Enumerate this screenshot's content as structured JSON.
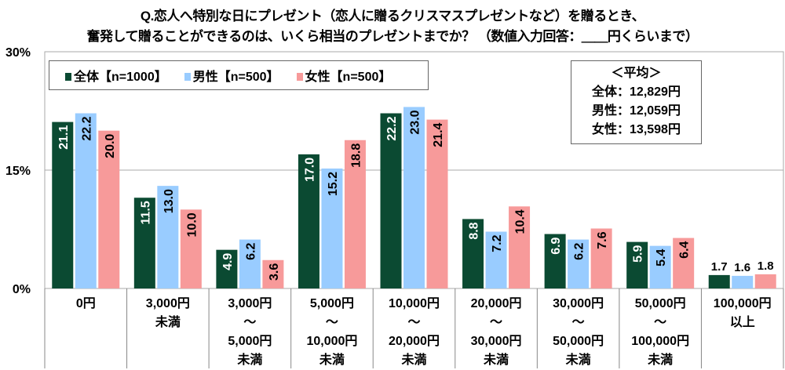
{
  "title_line1": "Q.恋人へ特別な日にプレゼント（恋人に贈るクリスマスプレゼントなど）を贈るとき、",
  "title_line2": "奮発して贈ることができるのは、いくら相当のプレゼントまでか？ （数値入力回答：＿＿円くらいまで）",
  "average_box": {
    "heading": "＜平均＞",
    "rows": [
      "全体：12,829円",
      "男性：12,059円",
      "女性：13,598円"
    ]
  },
  "chart_data": {
    "type": "bar",
    "title": "Q.恋人へ特別な日にプレゼント（恋人に贈るクリスマスプレゼントなど）を贈るとき、奮発して贈ることができるのは、いくら相当のプレゼントまでか？",
    "ylabel": "",
    "xlabel": "",
    "ylim": [
      0,
      30
    ],
    "yticks": [
      "0%",
      "15%",
      "30%"
    ],
    "ytick_values": [
      0,
      15,
      30
    ],
    "legend_position": "top-left",
    "categories": [
      [
        "0円"
      ],
      [
        "3,000円",
        "未満"
      ],
      [
        "3,000円",
        "～",
        "5,000円",
        "未満"
      ],
      [
        "5,000円",
        "～",
        "10,000円",
        "未満"
      ],
      [
        "10,000円",
        "～",
        "20,000円",
        "未満"
      ],
      [
        "20,000円",
        "～",
        "30,000円",
        "未満"
      ],
      [
        "30,000円",
        "～",
        "50,000円",
        "未満"
      ],
      [
        "50,000円",
        "～",
        "100,000円",
        "未満"
      ],
      [
        "100,000円",
        "以上"
      ]
    ],
    "series": [
      {
        "name": "全体【n=1000】",
        "color": "#0b4a32",
        "label_color": "#ffffff",
        "values": [
          21.1,
          11.5,
          4.9,
          17.0,
          22.2,
          8.8,
          6.9,
          5.9,
          1.7
        ]
      },
      {
        "name": "男性【n=500】",
        "color": "#99ccff",
        "label_color": "#000000",
        "values": [
          22.2,
          13.0,
          6.2,
          15.2,
          23.0,
          7.2,
          6.2,
          5.4,
          1.6
        ]
      },
      {
        "name": "女性【n=500】",
        "color": "#f79a9a",
        "label_color": "#000000",
        "values": [
          20.0,
          10.0,
          3.6,
          18.8,
          21.4,
          10.4,
          7.6,
          6.4,
          1.8
        ]
      }
    ]
  }
}
